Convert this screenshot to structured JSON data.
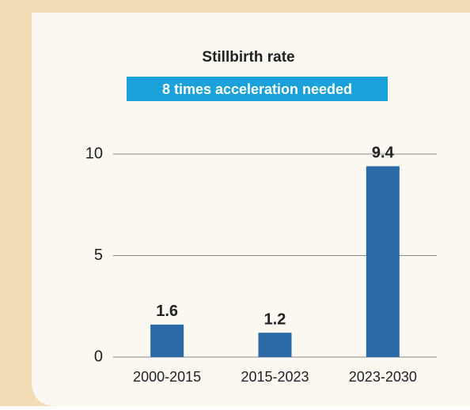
{
  "chart_data": {
    "type": "bar",
    "title": "Stillbirth rate",
    "subtitle": "8 times acceleration needed",
    "categories": [
      "2000-2015",
      "2015-2023",
      "2023-2030"
    ],
    "values": [
      1.6,
      1.2,
      9.4
    ],
    "color": "#2b69a6",
    "ylim": [
      0,
      10
    ],
    "yticks": [
      0,
      5,
      10
    ],
    "grid": true
  }
}
